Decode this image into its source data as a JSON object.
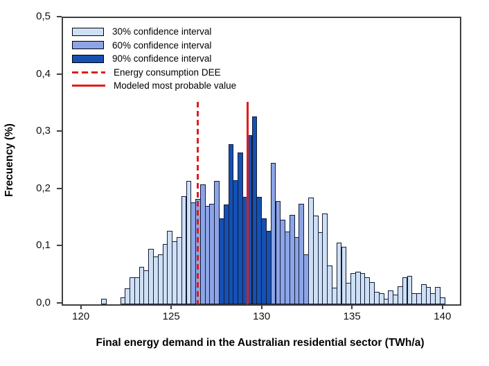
{
  "figure": {
    "x_axis_title": "Final energy demand in the Australian residential sector (TWh/a)",
    "y_axis_title": "Frecuency (%)"
  },
  "legend": [
    {
      "swatch": "box",
      "ci": "30",
      "label": "30% confidence interval"
    },
    {
      "swatch": "box",
      "ci": "60",
      "label": "60% confidence interval"
    },
    {
      "swatch": "box",
      "ci": "90",
      "label": "90% confidence interval"
    },
    {
      "swatch": "dashed",
      "label": "Energy consumption DEE"
    },
    {
      "swatch": "solid",
      "label": "Modeled most probable value"
    }
  ],
  "colors": {
    "ci30": "#cfe0f4",
    "ci60": "#8da5e6",
    "ci90": "#1650b2",
    "bar_outline": "#101b38",
    "red_line": "#e21b1b",
    "axis": "#3f3f3f"
  },
  "chart_data": {
    "type": "bar",
    "subtype": "histogram",
    "title": "",
    "xlabel": "Final energy demand in the Australian residential sector (TWh/a)",
    "ylabel": "Frecuency (%)",
    "xlim": [
      118.94,
      140.89
    ],
    "ylim": [
      0,
      0.5
    ],
    "x_ticks": [
      120,
      125,
      130,
      135,
      140
    ],
    "x_tick_labels": [
      "120",
      "125",
      "130",
      "135",
      "140"
    ],
    "y_ticks": [
      0,
      0.1,
      0.2,
      0.3,
      0.4,
      0.5
    ],
    "y_tick_labels": [
      "0,0",
      "0,1",
      "0,2",
      "0,3",
      "0,4",
      "0,5"
    ],
    "grid": false,
    "legend_position": "upper-left-inside",
    "bin_start": 121.06,
    "bin_width": 0.26,
    "bars": [
      {
        "v": 0.01,
        "ci": "30"
      },
      {
        "v": 0,
        "ci": "30"
      },
      {
        "v": 0,
        "ci": "30"
      },
      {
        "v": 0,
        "ci": "30"
      },
      {
        "v": 0.012,
        "ci": "30"
      },
      {
        "v": 0.028,
        "ci": "30"
      },
      {
        "v": 0.047,
        "ci": "30"
      },
      {
        "v": 0.047,
        "ci": "30"
      },
      {
        "v": 0.066,
        "ci": "30"
      },
      {
        "v": 0.059,
        "ci": "30"
      },
      {
        "v": 0.097,
        "ci": "30"
      },
      {
        "v": 0.083,
        "ci": "30"
      },
      {
        "v": 0.087,
        "ci": "30"
      },
      {
        "v": 0.105,
        "ci": "30"
      },
      {
        "v": 0.128,
        "ci": "30"
      },
      {
        "v": 0.11,
        "ci": "30"
      },
      {
        "v": 0.118,
        "ci": "30"
      },
      {
        "v": 0.189,
        "ci": "30"
      },
      {
        "v": 0.216,
        "ci": "30"
      },
      {
        "v": 0.178,
        "ci": "60"
      },
      {
        "v": 0.184,
        "ci": "60"
      },
      {
        "v": 0.209,
        "ci": "60"
      },
      {
        "v": 0.172,
        "ci": "60"
      },
      {
        "v": 0.176,
        "ci": "60"
      },
      {
        "v": 0.216,
        "ci": "60"
      },
      {
        "v": 0.15,
        "ci": "90"
      },
      {
        "v": 0.175,
        "ci": "90"
      },
      {
        "v": 0.28,
        "ci": "90"
      },
      {
        "v": 0.217,
        "ci": "90"
      },
      {
        "v": 0.265,
        "ci": "90"
      },
      {
        "v": 0.188,
        "ci": "90"
      },
      {
        "v": 0.296,
        "ci": "90"
      },
      {
        "v": 0.328,
        "ci": "90"
      },
      {
        "v": 0.188,
        "ci": "90"
      },
      {
        "v": 0.15,
        "ci": "90"
      },
      {
        "v": 0.128,
        "ci": "90"
      },
      {
        "v": 0.247,
        "ci": "60"
      },
      {
        "v": 0.18,
        "ci": "60"
      },
      {
        "v": 0.148,
        "ci": "60"
      },
      {
        "v": 0.127,
        "ci": "60"
      },
      {
        "v": 0.156,
        "ci": "60"
      },
      {
        "v": 0.118,
        "ci": "60"
      },
      {
        "v": 0.176,
        "ci": "60"
      },
      {
        "v": 0.087,
        "ci": "60"
      },
      {
        "v": 0.187,
        "ci": "30"
      },
      {
        "v": 0.155,
        "ci": "30"
      },
      {
        "v": 0.126,
        "ci": "30"
      },
      {
        "v": 0.159,
        "ci": "30"
      },
      {
        "v": 0.068,
        "ci": "30"
      },
      {
        "v": 0.029,
        "ci": "30"
      },
      {
        "v": 0.108,
        "ci": "30"
      },
      {
        "v": 0.1,
        "ci": "30"
      },
      {
        "v": 0.037,
        "ci": "30"
      },
      {
        "v": 0.055,
        "ci": "30"
      },
      {
        "v": 0.057,
        "ci": "30"
      },
      {
        "v": 0.055,
        "ci": "30"
      },
      {
        "v": 0.047,
        "ci": "30"
      },
      {
        "v": 0.039,
        "ci": "30"
      },
      {
        "v": 0.022,
        "ci": "30"
      },
      {
        "v": 0.02,
        "ci": "30"
      },
      {
        "v": 0.01,
        "ci": "30"
      },
      {
        "v": 0.024,
        "ci": "30"
      },
      {
        "v": 0.017,
        "ci": "30"
      },
      {
        "v": 0.031,
        "ci": "30"
      },
      {
        "v": 0.047,
        "ci": "30"
      },
      {
        "v": 0.05,
        "ci": "30"
      },
      {
        "v": 0.02,
        "ci": "30"
      },
      {
        "v": 0.02,
        "ci": "30"
      },
      {
        "v": 0.035,
        "ci": "30"
      },
      {
        "v": 0.03,
        "ci": "30"
      },
      {
        "v": 0.02,
        "ci": "30"
      },
      {
        "v": 0.03,
        "ci": "30"
      },
      {
        "v": 0.012,
        "ci": "30"
      }
    ],
    "vlines": [
      {
        "x": 126.39,
        "style": "dashed",
        "label": "Energy consumption DEE"
      },
      {
        "x": 129.15,
        "style": "solid",
        "label": "Modeled most probable value"
      }
    ],
    "vline_top": 0.353
  }
}
